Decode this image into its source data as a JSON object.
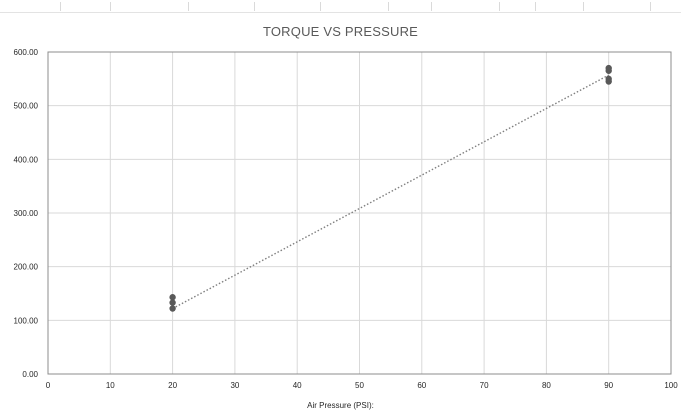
{
  "chart_data": {
    "type": "scatter",
    "title": "TORQUE VS PRESSURE",
    "xlabel": "Air Pressure (PSI):",
    "ylabel": "",
    "xlim": [
      0,
      100
    ],
    "ylim": [
      0,
      600
    ],
    "x_ticks": [
      0,
      10,
      20,
      30,
      40,
      50,
      60,
      70,
      80,
      90,
      100
    ],
    "x_tick_labels": [
      "0",
      "10",
      "20",
      "30",
      "40",
      "50",
      "60",
      "70",
      "80",
      "90",
      "100"
    ],
    "y_ticks": [
      0,
      100,
      200,
      300,
      400,
      500,
      600
    ],
    "y_tick_labels": [
      "0.00",
      "100.00",
      "200.00",
      "300.00",
      "400.00",
      "500.00",
      "600.00"
    ],
    "grid": true,
    "series": [
      {
        "x": [
          20,
          20,
          20,
          90,
          90,
          90,
          90
        ],
        "y": [
          143,
          133,
          122,
          570,
          565,
          550,
          545
        ],
        "color": "#595959"
      }
    ],
    "trendline": {
      "type": "linear",
      "from": [
        20,
        122
      ],
      "to": [
        90,
        557
      ],
      "style": "dotted",
      "color": "#7f7f7f"
    }
  }
}
